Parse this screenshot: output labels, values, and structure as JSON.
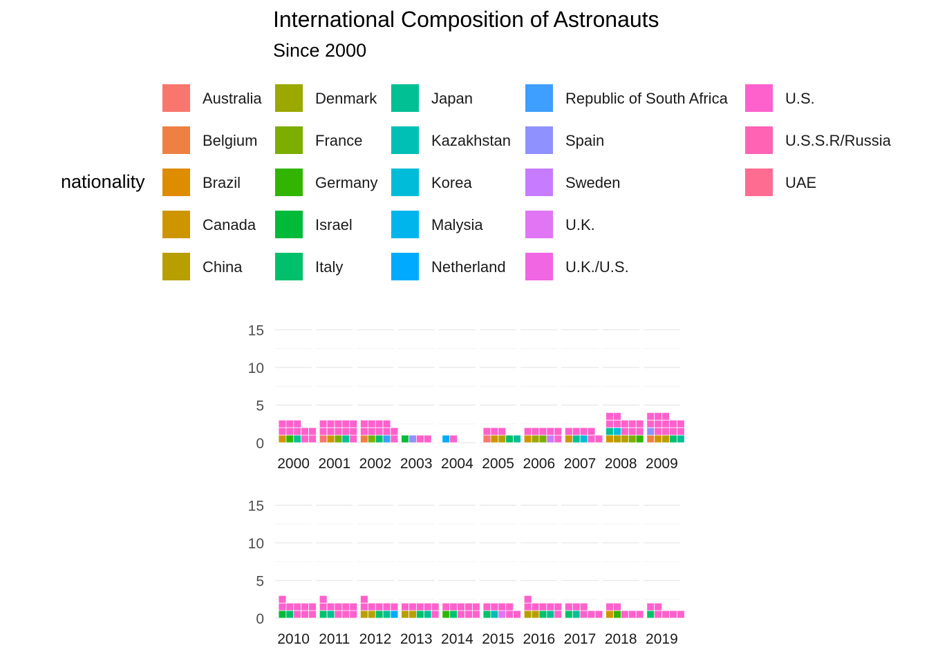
{
  "title": "International Composition of Astronauts",
  "subtitle": "Since 2000",
  "legend": {
    "title": "nationality",
    "items": [
      {
        "label": "Australia",
        "color": "#F8766D"
      },
      {
        "label": "Belgium",
        "color": "#EE8043"
      },
      {
        "label": "Brazil",
        "color": "#DE8C00"
      },
      {
        "label": "Canada",
        "color": "#CD9600"
      },
      {
        "label": "China",
        "color": "#B79F00"
      },
      {
        "label": "Denmark",
        "color": "#9AA800"
      },
      {
        "label": "France",
        "color": "#7CAE00"
      },
      {
        "label": "Germany",
        "color": "#31B500"
      },
      {
        "label": "Israel",
        "color": "#00BA38"
      },
      {
        "label": "Italy",
        "color": "#00C06B"
      },
      {
        "label": "Japan",
        "color": "#00C094"
      },
      {
        "label": "Kazakhstan",
        "color": "#00BFB4"
      },
      {
        "label": "Korea",
        "color": "#00BCD8"
      },
      {
        "label": "Malysia",
        "color": "#00B5EB"
      },
      {
        "label": "Netherland",
        "color": "#00ABFD"
      },
      {
        "label": "Republic of South Africa",
        "color": "#3E9FFF"
      },
      {
        "label": "Spain",
        "color": "#8F91FF"
      },
      {
        "label": "Sweden",
        "color": "#C77CFF"
      },
      {
        "label": "U.K.",
        "color": "#E076F4"
      },
      {
        "label": "U.K./U.S.",
        "color": "#F066E3"
      },
      {
        "label": "U.S.",
        "color": "#FF61CC"
      },
      {
        "label": "U.S.S.R/Russia",
        "color": "#FF63B4"
      },
      {
        "label": "UAE",
        "color": "#FF6C91"
      }
    ]
  },
  "chart_data": {
    "type": "bar",
    "description_units": "astronauts per year, stacked by nationality",
    "ylim": [
      0,
      16.5
    ],
    "yticks": [
      0,
      5,
      10,
      15
    ],
    "grid": true,
    "legend_position": "top",
    "panels": [
      {
        "years": [
          "2000",
          "2001",
          "2002",
          "2003",
          "2004",
          "2005",
          "2006",
          "2007",
          "2008",
          "2009"
        ],
        "counts": [
          {
            "Canada": 1,
            "Germany": 1,
            "Japan": 1,
            "U.S.": 10
          },
          {
            "Australia": 1,
            "Canada": 1,
            "France": 1,
            "Japan": 1,
            "U.S.": 11
          },
          {
            "Belgium": 1,
            "France": 1,
            "Italy": 1,
            "Republic of South Africa": 1,
            "U.S.": 10
          },
          {
            "Israel": 1,
            "Spain": 1,
            "U.S.": 2
          },
          {
            "Netherland": 1,
            "U.S.": 1
          },
          {
            "Australia": 1,
            "Canada": 1,
            "China": 1,
            "Italy": 1,
            "Japan": 1,
            "U.S.": 3
          },
          {
            "Canada": 1,
            "Denmark": 1,
            "France": 1,
            "Sweden": 1,
            "U.S.": 6
          },
          {
            "Canada": 1,
            "Japan": 1,
            "Korea": 1,
            "U.S.": 6
          },
          {
            "Canada": 1,
            "China": 2,
            "France": 1,
            "Germany": 1,
            "Japan": 1,
            "Korea": 1,
            "U.S.": 10
          },
          {
            "Belgium": 1,
            "Canada": 1,
            "China": 1,
            "Italy": 1,
            "Japan": 1,
            "Spain": 1,
            "U.S.": 12
          }
        ]
      },
      {
        "years": [
          "2010",
          "2011",
          "2012",
          "2013",
          "2014",
          "2015",
          "2016",
          "2017",
          "2018",
          "2019"
        ],
        "counts": [
          {
            "Israel": 1,
            "Italy": 1,
            "U.S.": 9
          },
          {
            "Italy": 1,
            "Japan": 1,
            "U.S.": 9
          },
          {
            "China": 2,
            "Italy": 1,
            "Japan": 1,
            "Netherland": 1,
            "U.S.": 6
          },
          {
            "China": 2,
            "Italy": 1,
            "Japan": 1,
            "U.S.": 6
          },
          {
            "Germany": 1,
            "Italy": 1,
            "U.S.": 8
          },
          {
            "Italy": 1,
            "Kazakhstan": 1,
            "U.K.": 1,
            "U.S.": 6
          },
          {
            "China": 2,
            "Italy": 1,
            "Japan": 1,
            "U.S.": 7
          },
          {
            "Italy": 1,
            "Japan": 1,
            "U.S.": 6
          },
          {
            "Canada": 1,
            "Germany": 1,
            "U.S.": 5
          },
          {
            "Italy": 1,
            "U.S.": 6
          }
        ]
      }
    ]
  }
}
